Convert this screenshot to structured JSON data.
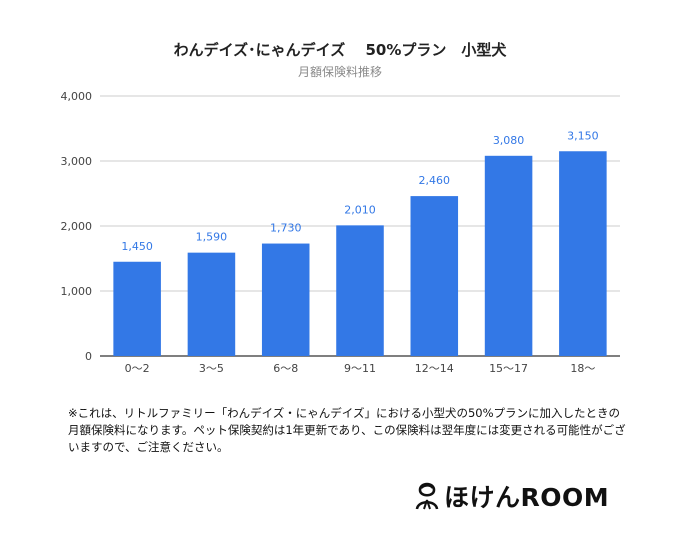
{
  "chart_data": {
    "type": "bar",
    "title": "わんデイズ･にゃんデイズ　 50%プラン　小型犬",
    "subtitle": "月額保険料推移",
    "categories": [
      "0〜2",
      "3〜5",
      "6〜8",
      "9〜11",
      "12〜14",
      "15〜17",
      "18〜"
    ],
    "values": [
      1450,
      1590,
      1730,
      2010,
      2460,
      3080,
      3150
    ],
    "value_labels": [
      "1,450",
      "1,590",
      "1,730",
      "2,010",
      "2,460",
      "3,080",
      "3,150"
    ],
    "yticks": [
      0,
      1000,
      2000,
      3000,
      4000
    ],
    "ytick_labels": [
      "0",
      "1,000",
      "2,000",
      "3,000",
      "4,000"
    ],
    "ylim": [
      0,
      4000
    ],
    "xlabel": "",
    "ylabel": "",
    "grid": true,
    "bar_color": "#3378e6",
    "label_color": "#3378e6"
  },
  "note": "※これは、リトルファミリー「わんデイズ・にゃんデイズ」における小型犬の50%プランに加入したときの月額保険料になります。ペット保険契約は1年更新であり、この保険料は翌年度には変更される可能性がございますので、ご注意ください。",
  "logo": {
    "text": "ほけんROOM",
    "icon": "person-icon"
  }
}
